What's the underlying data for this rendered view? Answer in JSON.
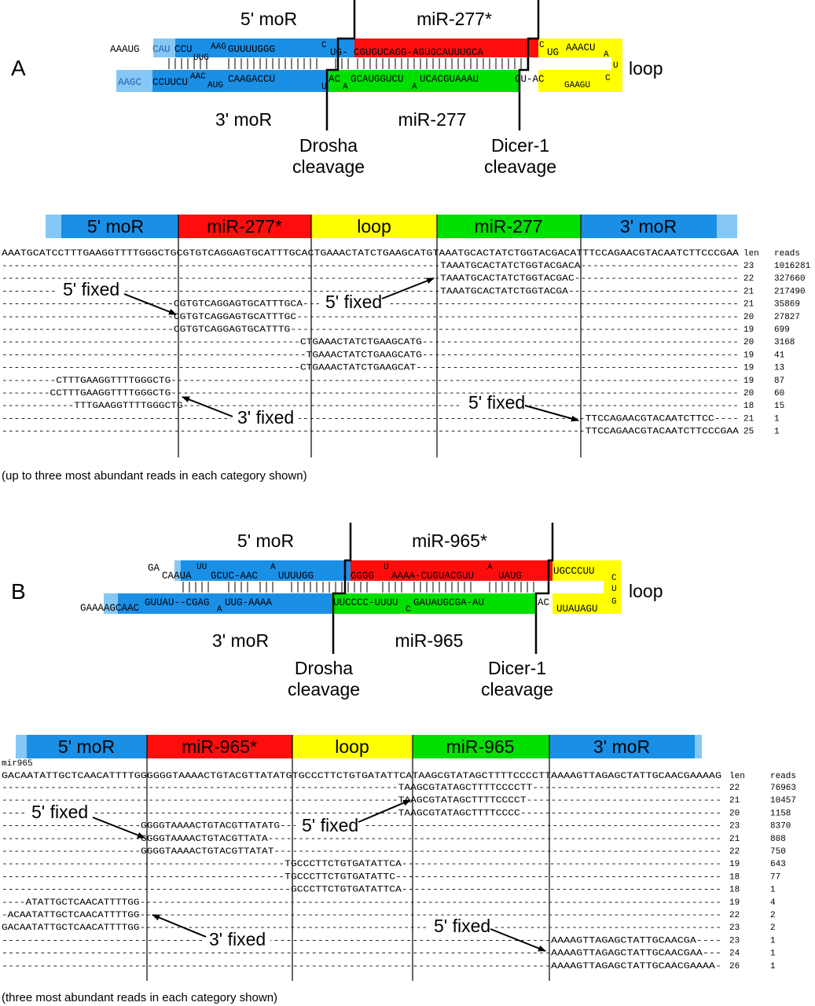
{
  "panels": [
    {
      "letter": "A",
      "hairpin": {
        "top_labels": [
          "5' moR",
          "miR-277*"
        ],
        "bottom_labels": [
          "3' moR",
          "miR-277"
        ],
        "loop_label": "loop",
        "cleavage_labels": [
          [
            "Drosha",
            "cleavage"
          ],
          [
            "Dicer-1",
            "cleavage"
          ]
        ],
        "strand_top_unpaired": "AAAUG",
        "strand_top_flank": "CAU",
        "strand_top_segments": [
          "CCU",
          "UUG",
          "AAG",
          "GUUUUGGG",
          "C",
          "UG-",
          "CGUGUCAGG-AGUGCAUUUGCA",
          "C",
          "UG",
          "AAACU",
          "A"
        ],
        "loop_right": [
          "U",
          "C"
        ],
        "strand_bottom_flank": "AAGC",
        "strand_bottom_segments": [
          "CCUUCU",
          "AAC",
          "AUG",
          "CAAGACCU",
          "U",
          "AC",
          "A",
          "GCAUGGUCU",
          "A",
          "UCACGUAAAU",
          "GU-AC",
          "GAAGU"
        ]
      },
      "bar_labels": [
        "5' moR",
        "miR-277*",
        "loop",
        "miR-277",
        "3' moR"
      ],
      "alignment": {
        "reference": "AAATGCATCCTTTGAAGGTTTTGGGCTGCGTGTCAGGAGTGCATTTGCACTGAAACTATCTGAAGCATGTAAATGCACTATCTGGTACGACATTTCCAGAACGTACAATCTTCCCGAA",
        "col_headers": [
          "len",
          "reads"
        ],
        "rows": [
          {
            "seq": "------------------------------------------------------------------------TAAATGCACTATCTGGTACGACA--------------------------",
            "len": "23",
            "reads": "1016281"
          },
          {
            "seq": "------------------------------------------------------------------------TAAATGCACTATCTGGTACGAC---------------------------",
            "len": "22",
            "reads": "327660"
          },
          {
            "seq": "------------------------------------------------------------------------TAAATGCACTATCTGGTACGA----------------------------",
            "len": "21",
            "reads": "217490"
          },
          {
            "seq": "----------------------------CGTGTCAGGAGTGCATTTGCA-----------------------------------------------------------------------",
            "len": "21",
            "reads": "35869"
          },
          {
            "seq": "----------------------------CGTGTCAGGAGTGCATTTGC------------------------------------------------------------------------",
            "len": "20",
            "reads": "27827"
          },
          {
            "seq": "----------------------------CGTGTCAGGAGTGCATTTG-------------------------------------------------------------------------",
            "len": "19",
            "reads": "699"
          },
          {
            "seq": "-------------------------------------------------CTGAAACTATCTGAAGCATG----------------------------------------------------",
            "len": "20",
            "reads": "3168"
          },
          {
            "seq": "--------------------------------------------------TGAAACTATCTGAAGCATG----------------------------------------------------",
            "len": "19",
            "reads": "41"
          },
          {
            "seq": "-------------------------------------------------CTGAAACTATCTGAAGCAT-----------------------------------------------------",
            "len": "19",
            "reads": "13"
          },
          {
            "seq": "---------CTTTGAAGGTTTTGGGCTG----------------------------------------------------------------------------------------------",
            "len": "19",
            "reads": "87"
          },
          {
            "seq": "--------CCTTTGAAGGTTTTGGGCTG----------------------------------------------------------------------------------------------",
            "len": "20",
            "reads": "60"
          },
          {
            "seq": "------------TTTGAAGGTTTTGGGCTG--------------------------------------------------------------------------------------------",
            "len": "18",
            "reads": "15"
          },
          {
            "seq": "-----------------------------------------------------------------------------------------------TTCCAGAACGTACAATCTTCC----",
            "len": "21",
            "reads": "1"
          },
          {
            "seq": "-----------------------------------------------------------------------------------------------TTCCAGAACGTACAATCTTCCCGAA",
            "len": "25",
            "reads": "1"
          }
        ],
        "callouts": [
          "5' fixed",
          "5' fixed",
          "3' fixed",
          "5' fixed"
        ]
      },
      "caption": "(up to three most abundant reads in each category shown)"
    },
    {
      "letter": "B",
      "hairpin": {
        "top_labels": [
          "5' moR",
          "miR-965*"
        ],
        "bottom_labels": [
          "3' moR",
          "miR-965"
        ],
        "loop_label": "loop",
        "cleavage_labels": [
          [
            "Drosha",
            "cleavage"
          ],
          [
            "Dicer-1",
            "cleavage"
          ]
        ],
        "strand_top_unpaired": "GA",
        "strand_top_segments": [
          "CAAUA",
          "UU",
          "GCUC-AAC",
          "A",
          "UUUUGG",
          "GGGG",
          "U",
          "AAAA-CUGUACGUU",
          "A",
          "UAUG",
          "UGCCCUU",
          "C"
        ],
        "loop_right": [
          "U",
          "G"
        ],
        "strand_bottom_flank": "GAAAAGCAAC",
        "strand_bottom_segments": [
          "GUUAU--CGAG",
          "A",
          "UUG-AAAA",
          "UUCCCC-UUUU",
          "C",
          "GAUAUGCGA-AU",
          "AC",
          "UUAUAGU"
        ]
      },
      "bar_labels": [
        "5' moR",
        "miR-965*",
        "loop",
        "miR-965",
        "3' moR"
      ],
      "alignment": {
        "name": "mir965",
        "reference": "GACAATATTGCTCAACATTTTGGGGGGTAAAACTGTACGTTATATGTGCCCTTCTGTGATATTCATAAGCGTATAGCTTTTCCCCTTAAAAGTTAGAGCTATTGCAACGAAAAG",
        "col_headers": [
          "len",
          "reads"
        ],
        "rows": [
          {
            "seq": "-----------------------------------------------------------------TAAGCGTATAGCTTTTCCCCTT-------------------------------",
            "len": "22",
            "reads": "76963"
          },
          {
            "seq": "-----------------------------------------------------------------TAAGCGTATAGCTTTTCCCCT--------------------------------",
            "len": "21",
            "reads": "10457"
          },
          {
            "seq": "-----------------------------------------------------------------TAAGCGTATAGCTTTTCCCC---------------------------------",
            "len": "20",
            "reads": "1158"
          },
          {
            "seq": "-----------------------GGGGTAAAACTGTACGTTATATG-------------------------------------------------------------------------",
            "len": "23",
            "reads": "8370"
          },
          {
            "seq": "-----------------------GGGGTAAAACTGTACGTTATA---------------------------------------------------------------------------",
            "len": "21",
            "reads": "808"
          },
          {
            "seq": "-----------------------GGGGTAAAACTGTACGTTATAT--------------------------------------------------------------------------",
            "len": "22",
            "reads": "750"
          },
          {
            "seq": "----------------------------------------------TGCCCTTCTGTGATATTCA----------------------------------------------------",
            "len": "19",
            "reads": "643"
          },
          {
            "seq": "----------------------------------------------TGCCCTTCTGTGATATTC-----------------------------------------------------",
            "len": "18",
            "reads": "77"
          },
          {
            "seq": "-----------------------------------------------GCCCTTCTGTGATATTCA----------------------------------------------------",
            "len": "18",
            "reads": "1"
          },
          {
            "seq": "----ATATTGCTCAACATTTTGG-------------------------------------------------------------------------------------------------",
            "len": "19",
            "reads": "4"
          },
          {
            "seq": "-ACAATATTGCTCAACATTTTGG-------------------------------------------------------------------------------------------------",
            "len": "22",
            "reads": "2"
          },
          {
            "seq": "GACAATATTGCTCAACATTTTGG-------------------------------------------------------------------------------------------------",
            "len": "23",
            "reads": "2"
          },
          {
            "seq": "---------------------------------------------------------------------------------------AAAAGTTAGAGCTATTGCAACGA----",
            "len": "23",
            "reads": "1"
          },
          {
            "seq": "---------------------------------------------------------------------------------------AAAAGTTAGAGCTATTGCAACGAA---",
            "len": "24",
            "reads": "1"
          },
          {
            "seq": "---------------------------------------------------------------------------------------AAAAGTTAGAGCTATTGCAACGAAAA-",
            "len": "26",
            "reads": "1"
          }
        ],
        "callouts": [
          "5' fixed",
          "5' fixed",
          "3' fixed",
          "5' fixed"
        ]
      },
      "caption": "(three most abundant reads in each category shown)"
    }
  ],
  "colors": {
    "moR": "#1a8fe6",
    "moR_light": "#86c8f5",
    "star": "#ff0d0d",
    "loop": "#ffff00",
    "mature": "#00e000"
  }
}
